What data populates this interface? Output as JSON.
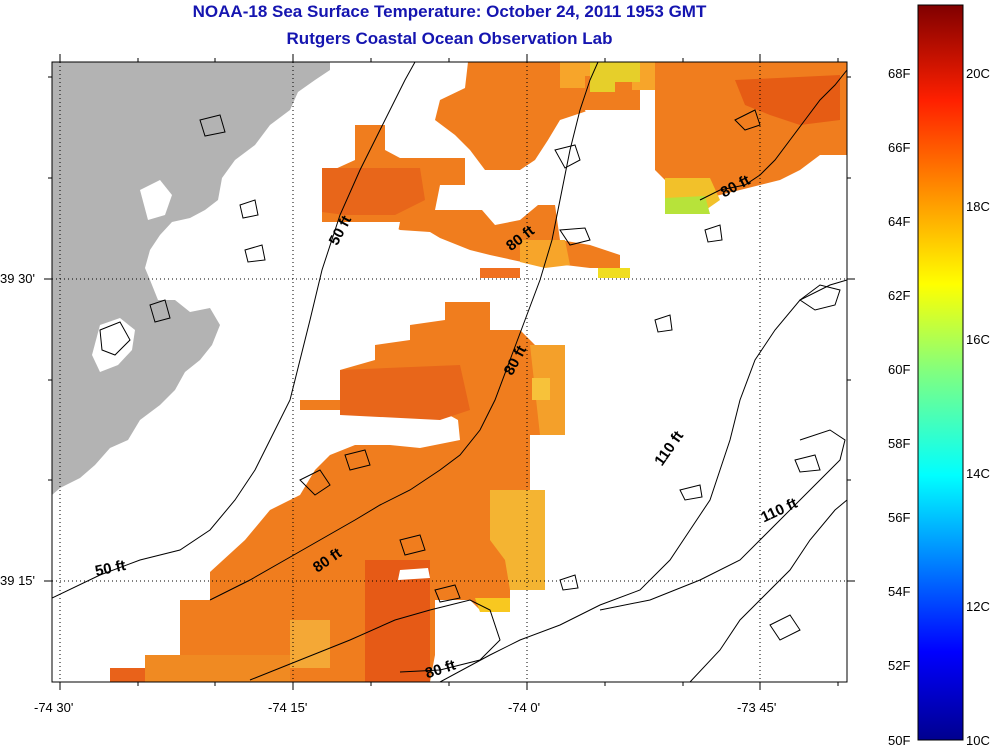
{
  "header": {
    "title": "NOAA-18 Sea Surface Temperature:  October 24, 2011 1953 GMT",
    "subtitle": "Rutgers Coastal Ocean Observation Lab"
  },
  "axes": {
    "x_ticks": [
      "-74 30'",
      "-74 15'",
      "-74 0'",
      "-73 45'"
    ],
    "y_ticks": [
      "39 30'",
      "39 15'"
    ]
  },
  "colorbar": {
    "fahrenheit": [
      "68F",
      "66F",
      "64F",
      "62F",
      "60F",
      "58F",
      "56F",
      "54F",
      "52F",
      "50F"
    ],
    "celsius": [
      "20C",
      "18C",
      "16C",
      "14C",
      "12C",
      "10C"
    ],
    "colors": [
      "#00008f",
      "#0000ff",
      "#0080ff",
      "#00ffff",
      "#80ff80",
      "#ffff00",
      "#ff8000",
      "#ff0000",
      "#800000"
    ]
  },
  "contour_labels": {
    "l50_north": "50 ft",
    "l50_south": "50 ft",
    "l80_a": "80 ft",
    "l80_b": "80 ft",
    "l80_c": "80 ft",
    "l80_d": "80 ft",
    "l80_e": "80 ft",
    "l110_a": "110 ft",
    "l110_b": "110 ft"
  },
  "colors": {
    "land": "#b3b3b3",
    "title": "#1515b0",
    "sst_warm": "#f07820",
    "sst_cool": "#e8d020"
  }
}
